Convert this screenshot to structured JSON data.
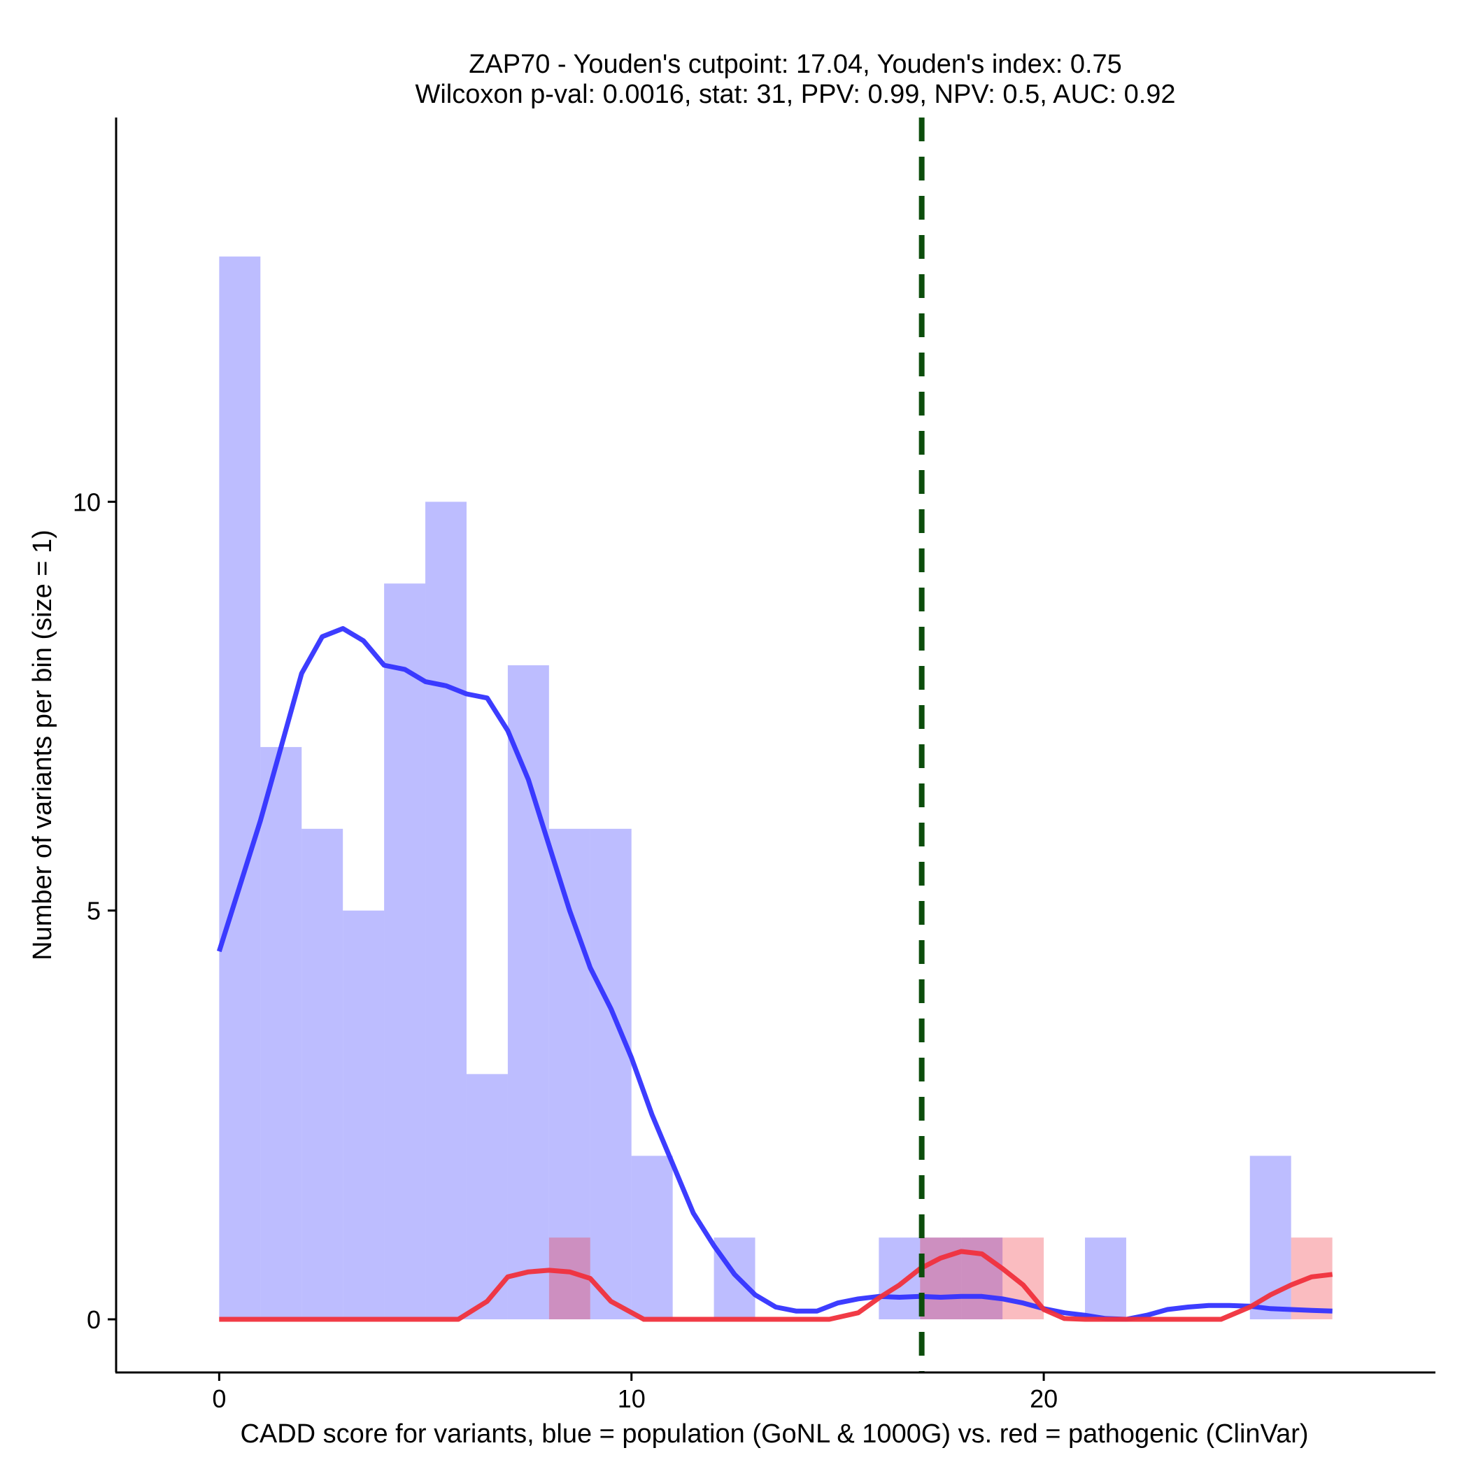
{
  "chart_data": {
    "type": "bar",
    "title_line1": "ZAP70 - Youden's cutpoint: 17.04, Youden's index: 0.75",
    "title_line2": "Wilcoxon p-val: 0.0016, stat: 31, PPV: 0.99, NPV: 0.5, AUC: 0.92",
    "xlabel": "CADD score for variants, blue = population (GoNL & 1000G) vs. red = pathogenic (ClinVar)",
    "ylabel": "Number of variants per bin (size = 1)",
    "xlim": [
      -2.5,
      29.5
    ],
    "ylim": [
      -0.65,
      14.7
    ],
    "x_ticks": [
      0,
      10,
      20
    ],
    "x_tick_labels": [
      "0",
      "10",
      "20"
    ],
    "y_ticks": [
      0,
      5,
      10
    ],
    "y_tick_labels": [
      "0",
      "5",
      "10"
    ],
    "bin_width": 1,
    "cutpoint": 17.04,
    "colors": {
      "population": "#3333ff",
      "population_bar": "#bfbffc",
      "pathogenic": "#f0303c",
      "pathogenic_bar": "#ffa0a6",
      "cutpoint": "#0c4d0c"
    },
    "series": [
      {
        "name": "population (GoNL & 1000G)",
        "bins": [
          {
            "x0": 0,
            "count": 13
          },
          {
            "x0": 1,
            "count": 7
          },
          {
            "x0": 2,
            "count": 6
          },
          {
            "x0": 3,
            "count": 5
          },
          {
            "x0": 4,
            "count": 9
          },
          {
            "x0": 5,
            "count": 10
          },
          {
            "x0": 6,
            "count": 3
          },
          {
            "x0": 7,
            "count": 8
          },
          {
            "x0": 8,
            "count": 6
          },
          {
            "x0": 9,
            "count": 6
          },
          {
            "x0": 10,
            "count": 2
          },
          {
            "x0": 12,
            "count": 1
          },
          {
            "x0": 16,
            "count": 1
          },
          {
            "x0": 17,
            "count": 1
          },
          {
            "x0": 18,
            "count": 1
          },
          {
            "x0": 21,
            "count": 1
          },
          {
            "x0": 25,
            "count": 2
          }
        ],
        "density": [
          [
            0,
            4.5
          ],
          [
            0.5,
            5.3
          ],
          [
            1,
            6.1
          ],
          [
            1.5,
            7.0
          ],
          [
            2,
            7.9
          ],
          [
            2.5,
            8.35
          ],
          [
            3,
            8.45
          ],
          [
            3.5,
            8.3
          ],
          [
            4,
            8.0
          ],
          [
            4.5,
            7.95
          ],
          [
            5,
            7.8
          ],
          [
            5.5,
            7.75
          ],
          [
            6,
            7.65
          ],
          [
            6.5,
            7.6
          ],
          [
            7,
            7.2
          ],
          [
            7.5,
            6.6
          ],
          [
            8,
            5.8
          ],
          [
            8.5,
            5.0
          ],
          [
            9,
            4.3
          ],
          [
            9.5,
            3.8
          ],
          [
            10,
            3.2
          ],
          [
            10.5,
            2.5
          ],
          [
            11,
            1.9
          ],
          [
            11.5,
            1.3
          ],
          [
            12,
            0.9
          ],
          [
            12.5,
            0.55
          ],
          [
            13,
            0.3
          ],
          [
            13.5,
            0.15
          ],
          [
            14,
            0.1
          ],
          [
            14.5,
            0.1
          ],
          [
            15,
            0.2
          ],
          [
            15.5,
            0.25
          ],
          [
            16,
            0.28
          ],
          [
            16.5,
            0.27
          ],
          [
            17,
            0.28
          ],
          [
            17.5,
            0.27
          ],
          [
            18,
            0.28
          ],
          [
            18.5,
            0.28
          ],
          [
            19,
            0.25
          ],
          [
            19.5,
            0.2
          ],
          [
            20,
            0.13
          ],
          [
            20.5,
            0.08
          ],
          [
            21,
            0.05
          ],
          [
            21.5,
            0.01
          ],
          [
            22,
            0.0
          ],
          [
            22.5,
            0.05
          ],
          [
            23,
            0.12
          ],
          [
            23.5,
            0.15
          ],
          [
            24,
            0.17
          ],
          [
            24.5,
            0.17
          ],
          [
            25,
            0.16
          ],
          [
            25.5,
            0.13
          ],
          [
            26,
            0.12
          ],
          [
            26.5,
            0.11
          ],
          [
            27,
            0.1
          ]
        ]
      },
      {
        "name": "pathogenic (ClinVar)",
        "bins": [
          {
            "x0": 8,
            "count": 1
          },
          {
            "x0": 17,
            "count": 1
          },
          {
            "x0": 18,
            "count": 1
          },
          {
            "x0": 19,
            "count": 1
          },
          {
            "x0": 26,
            "count": 1
          }
        ],
        "density": [
          [
            0,
            0
          ],
          [
            5.8,
            0
          ],
          [
            6.5,
            0.22
          ],
          [
            7,
            0.52
          ],
          [
            7.5,
            0.58
          ],
          [
            8,
            0.6
          ],
          [
            8.5,
            0.58
          ],
          [
            9,
            0.5
          ],
          [
            9.5,
            0.22
          ],
          [
            10.3,
            0
          ],
          [
            14.8,
            0
          ],
          [
            15.5,
            0.08
          ],
          [
            16,
            0.26
          ],
          [
            16.5,
            0.42
          ],
          [
            17,
            0.62
          ],
          [
            17.5,
            0.75
          ],
          [
            18,
            0.83
          ],
          [
            18.5,
            0.8
          ],
          [
            19,
            0.62
          ],
          [
            19.5,
            0.42
          ],
          [
            20,
            0.12
          ],
          [
            20.5,
            0.01
          ],
          [
            21,
            0.0
          ],
          [
            24.3,
            0
          ],
          [
            25,
            0.15
          ],
          [
            25.5,
            0.3
          ],
          [
            26,
            0.42
          ],
          [
            26.5,
            0.52
          ],
          [
            27,
            0.55
          ]
        ]
      }
    ]
  }
}
